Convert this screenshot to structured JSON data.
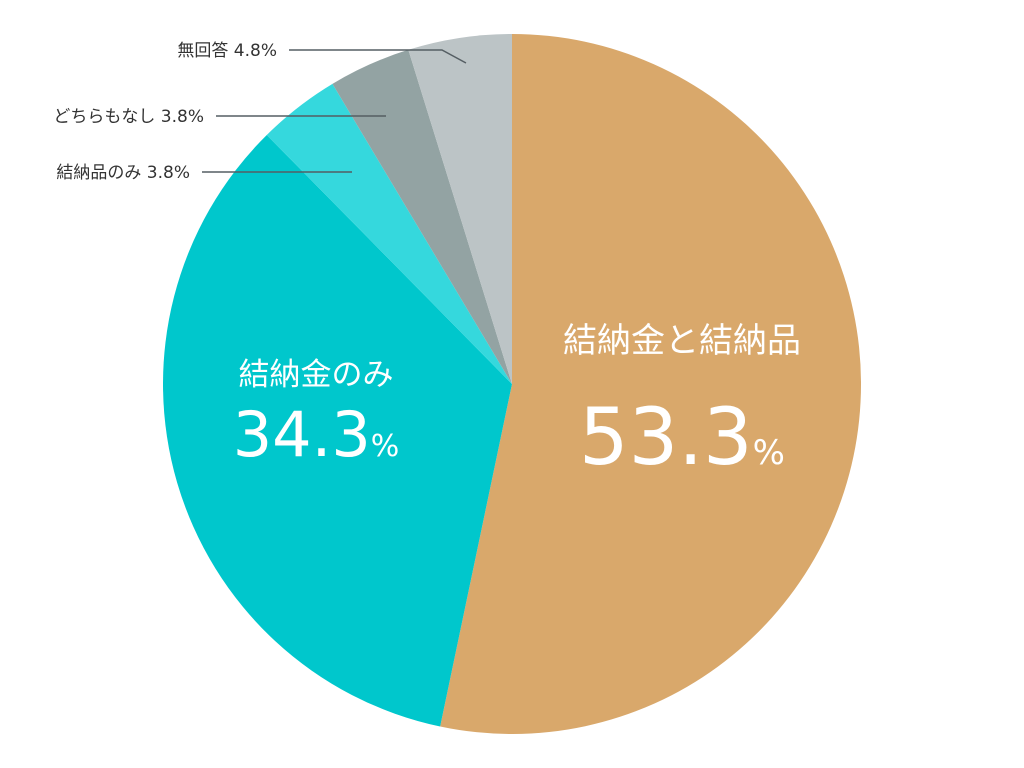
{
  "chart_data": {
    "type": "pie",
    "slices": [
      {
        "label": "結納金と結納品",
        "value": 53.3,
        "value_text": "53.3",
        "unit": "%",
        "color": "#d9a86b",
        "label_position": "inside"
      },
      {
        "label": "結納金のみ",
        "value": 34.3,
        "value_text": "34.3",
        "unit": "%",
        "color": "#00c7cc",
        "label_position": "inside"
      },
      {
        "label": "結納品のみ",
        "value": 3.8,
        "value_text": "3.8",
        "unit": "%",
        "color": "#35d8dd",
        "label_position": "outside"
      },
      {
        "label": "どちらもなし",
        "value": 3.8,
        "value_text": "3.8",
        "unit": "%",
        "color": "#93a3a3",
        "label_position": "outside"
      },
      {
        "label": "無回答",
        "value": 4.8,
        "value_text": "4.8",
        "unit": "%",
        "color": "#bcc4c6",
        "label_position": "outside"
      }
    ],
    "start_angle": "12 o'clock",
    "direction": "clockwise"
  }
}
